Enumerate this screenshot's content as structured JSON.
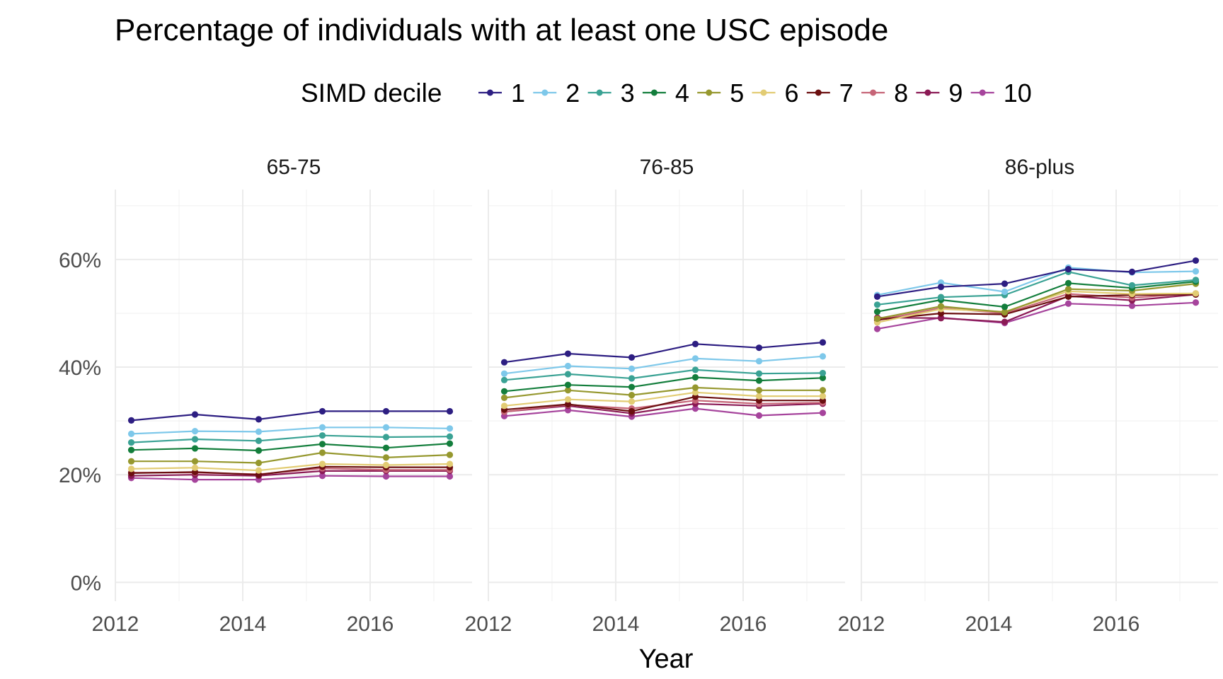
{
  "chart_data": {
    "type": "line",
    "title": "Percentage of individuals with at least one USC episode",
    "xlabel": "Year",
    "ylabel": "",
    "legend": {
      "title": "SIMD decile",
      "placement": "top"
    },
    "ylim": [
      -0.035,
      0.73
    ],
    "xlim": [
      2012,
      2017.6
    ],
    "y_ticks": [
      0,
      0.2,
      0.4,
      0.6
    ],
    "y_tick_labels": [
      "0%",
      "20%",
      "40%",
      "60%"
    ],
    "x_ticks": [
      2012,
      2014,
      2016
    ],
    "x_tick_labels": [
      "2012",
      "2014",
      "2016"
    ],
    "grid": true,
    "x": [
      2012.25,
      2013.25,
      2014.25,
      2015.25,
      2016.25,
      2017.25
    ],
    "series_names": [
      "1",
      "2",
      "3",
      "4",
      "5",
      "6",
      "7",
      "8",
      "9",
      "10"
    ],
    "colors": [
      "#2d1e82",
      "#7ec8ea",
      "#3aa294",
      "#137e3c",
      "#96982f",
      "#e2cc74",
      "#6b0f10",
      "#c66577",
      "#8b1a55",
      "#a6449c"
    ],
    "panels": [
      {
        "label": "65-75",
        "series": [
          {
            "name": "1",
            "values": [
              0.301,
              0.312,
              0.303,
              0.318,
              0.318,
              0.318
            ]
          },
          {
            "name": "2",
            "values": [
              0.276,
              0.281,
              0.28,
              0.288,
              0.288,
              0.286
            ]
          },
          {
            "name": "3",
            "values": [
              0.26,
              0.266,
              0.263,
              0.273,
              0.27,
              0.271
            ]
          },
          {
            "name": "4",
            "values": [
              0.246,
              0.249,
              0.245,
              0.257,
              0.25,
              0.258
            ]
          },
          {
            "name": "5",
            "values": [
              0.225,
              0.225,
              0.222,
              0.241,
              0.232,
              0.237
            ]
          },
          {
            "name": "6",
            "values": [
              0.211,
              0.213,
              0.208,
              0.22,
              0.218,
              0.22
            ]
          },
          {
            "name": "7",
            "values": [
              0.203,
              0.205,
              0.2,
              0.215,
              0.214,
              0.214
            ]
          },
          {
            "name": "8",
            "values": [
              0.204,
              0.204,
              0.201,
              0.212,
              0.209,
              0.209
            ]
          },
          {
            "name": "9",
            "values": [
              0.198,
              0.2,
              0.198,
              0.207,
              0.207,
              0.207
            ]
          },
          {
            "name": "10",
            "values": [
              0.194,
              0.191,
              0.191,
              0.198,
              0.197,
              0.197
            ]
          }
        ]
      },
      {
        "label": "76-85",
        "series": [
          {
            "name": "1",
            "values": [
              0.409,
              0.425,
              0.418,
              0.443,
              0.436,
              0.446
            ]
          },
          {
            "name": "2",
            "values": [
              0.388,
              0.402,
              0.397,
              0.416,
              0.411,
              0.42
            ]
          },
          {
            "name": "3",
            "values": [
              0.376,
              0.387,
              0.379,
              0.395,
              0.388,
              0.389
            ]
          },
          {
            "name": "4",
            "values": [
              0.355,
              0.367,
              0.363,
              0.381,
              0.375,
              0.38
            ]
          },
          {
            "name": "5",
            "values": [
              0.343,
              0.357,
              0.348,
              0.362,
              0.357,
              0.357
            ]
          },
          {
            "name": "6",
            "values": [
              0.328,
              0.34,
              0.336,
              0.353,
              0.346,
              0.346
            ]
          },
          {
            "name": "7",
            "values": [
              0.321,
              0.331,
              0.318,
              0.345,
              0.338,
              0.338
            ]
          },
          {
            "name": "8",
            "values": [
              0.317,
              0.33,
              0.323,
              0.338,
              0.332,
              0.334
            ]
          },
          {
            "name": "9",
            "values": [
              0.317,
              0.328,
              0.314,
              0.332,
              0.328,
              0.332
            ]
          },
          {
            "name": "10",
            "values": [
              0.309,
              0.32,
              0.308,
              0.323,
              0.31,
              0.315
            ]
          }
        ]
      },
      {
        "label": "86-plus",
        "series": [
          {
            "name": "1",
            "values": [
              0.531,
              0.549,
              0.555,
              0.582,
              0.577,
              0.598
            ]
          },
          {
            "name": "2",
            "values": [
              0.534,
              0.557,
              0.54,
              0.585,
              0.576,
              0.578
            ]
          },
          {
            "name": "3",
            "values": [
              0.516,
              0.53,
              0.534,
              0.577,
              0.552,
              0.562
            ]
          },
          {
            "name": "4",
            "values": [
              0.503,
              0.525,
              0.512,
              0.556,
              0.547,
              0.559
            ]
          },
          {
            "name": "5",
            "values": [
              0.49,
              0.513,
              0.502,
              0.545,
              0.542,
              0.555
            ]
          },
          {
            "name": "6",
            "values": [
              0.483,
              0.508,
              0.503,
              0.541,
              0.536,
              0.537
            ]
          },
          {
            "name": "7",
            "values": [
              0.488,
              0.5,
              0.498,
              0.531,
              0.534,
              0.535
            ]
          },
          {
            "name": "8",
            "values": [
              0.487,
              0.51,
              0.5,
              0.536,
              0.529,
              0.537
            ]
          },
          {
            "name": "9",
            "values": [
              0.492,
              0.491,
              0.484,
              0.532,
              0.524,
              0.535
            ]
          },
          {
            "name": "10",
            "values": [
              0.471,
              0.492,
              0.482,
              0.518,
              0.514,
              0.52
            ]
          }
        ]
      }
    ]
  }
}
